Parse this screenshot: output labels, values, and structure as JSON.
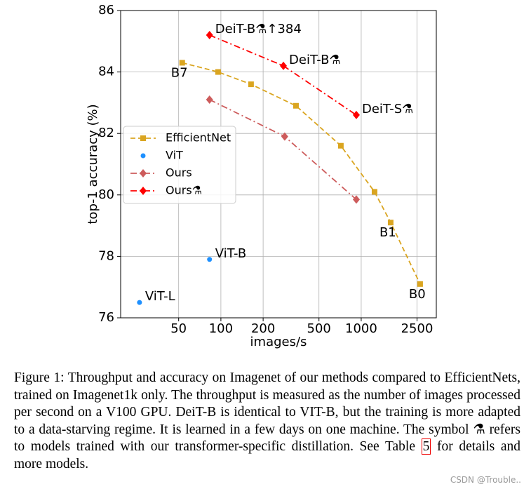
{
  "chart_data": {
    "type": "line",
    "xlabel": "images/s",
    "ylabel": "top-1 accuracy (%)",
    "xscale": "log",
    "xlim": [
      19.3,
      3430
    ],
    "xticks": [
      50,
      100,
      200,
      500,
      1000,
      2500
    ],
    "ylim": [
      76,
      86
    ],
    "yticks": [
      76,
      78,
      80,
      82,
      84,
      86
    ],
    "grid": true,
    "legend": "center left",
    "series": [
      {
        "name": "EfficientNet",
        "color": "#daa520",
        "marker": "square",
        "linestyle": "dashed",
        "x": [
          53,
          95.5,
          164,
          343,
          716,
          1245,
          1622,
          2630
        ],
        "values": [
          84.3,
          84.0,
          83.6,
          82.9,
          81.6,
          80.1,
          79.1,
          77.1
        ],
        "point_labels": [
          "B7",
          null,
          null,
          null,
          null,
          null,
          "B1",
          "B0"
        ]
      },
      {
        "name": "ViT",
        "color": "#1e90ff",
        "marker": "circle",
        "linestyle": "none",
        "x": [
          26.3,
          83
        ],
        "values": [
          76.5,
          77.9
        ],
        "point_labels": [
          "ViT-L",
          "ViT-B"
        ]
      },
      {
        "name": "Ours",
        "color": "#cd5c5c",
        "marker": "diamond",
        "linestyle": "dashdot",
        "x": [
          83,
          285,
          923
        ],
        "values": [
          83.1,
          81.9,
          79.85
        ]
      },
      {
        "name": "Ours⚗",
        "color": "#ff0000",
        "marker": "diamond",
        "linestyle": "dashdot",
        "x": [
          83,
          279,
          923
        ],
        "values": [
          85.2,
          84.2,
          82.6
        ],
        "point_labels": [
          "DeiT-B⚗↑384",
          "DeiT-B⚗",
          "DeiT-S⚗"
        ]
      }
    ]
  },
  "caption": {
    "text_before": "Figure 1: Throughput and accuracy on Imagenet of our methods compared to EfficientNets, trained on Imagenet1k only. The throughput is measured as the number of images processed per second on a V100 GPU. DeiT-B is identical to VIT-B, but the training is more adapted to a data-starving regime. It is learned in a few days on one machine. The symbol ⚗ refers to models trained with our transformer-specific distillation. See Table ",
    "table_ref": "5",
    "text_after": " for details and more models."
  },
  "watermark": "CSDN @Trouble.."
}
